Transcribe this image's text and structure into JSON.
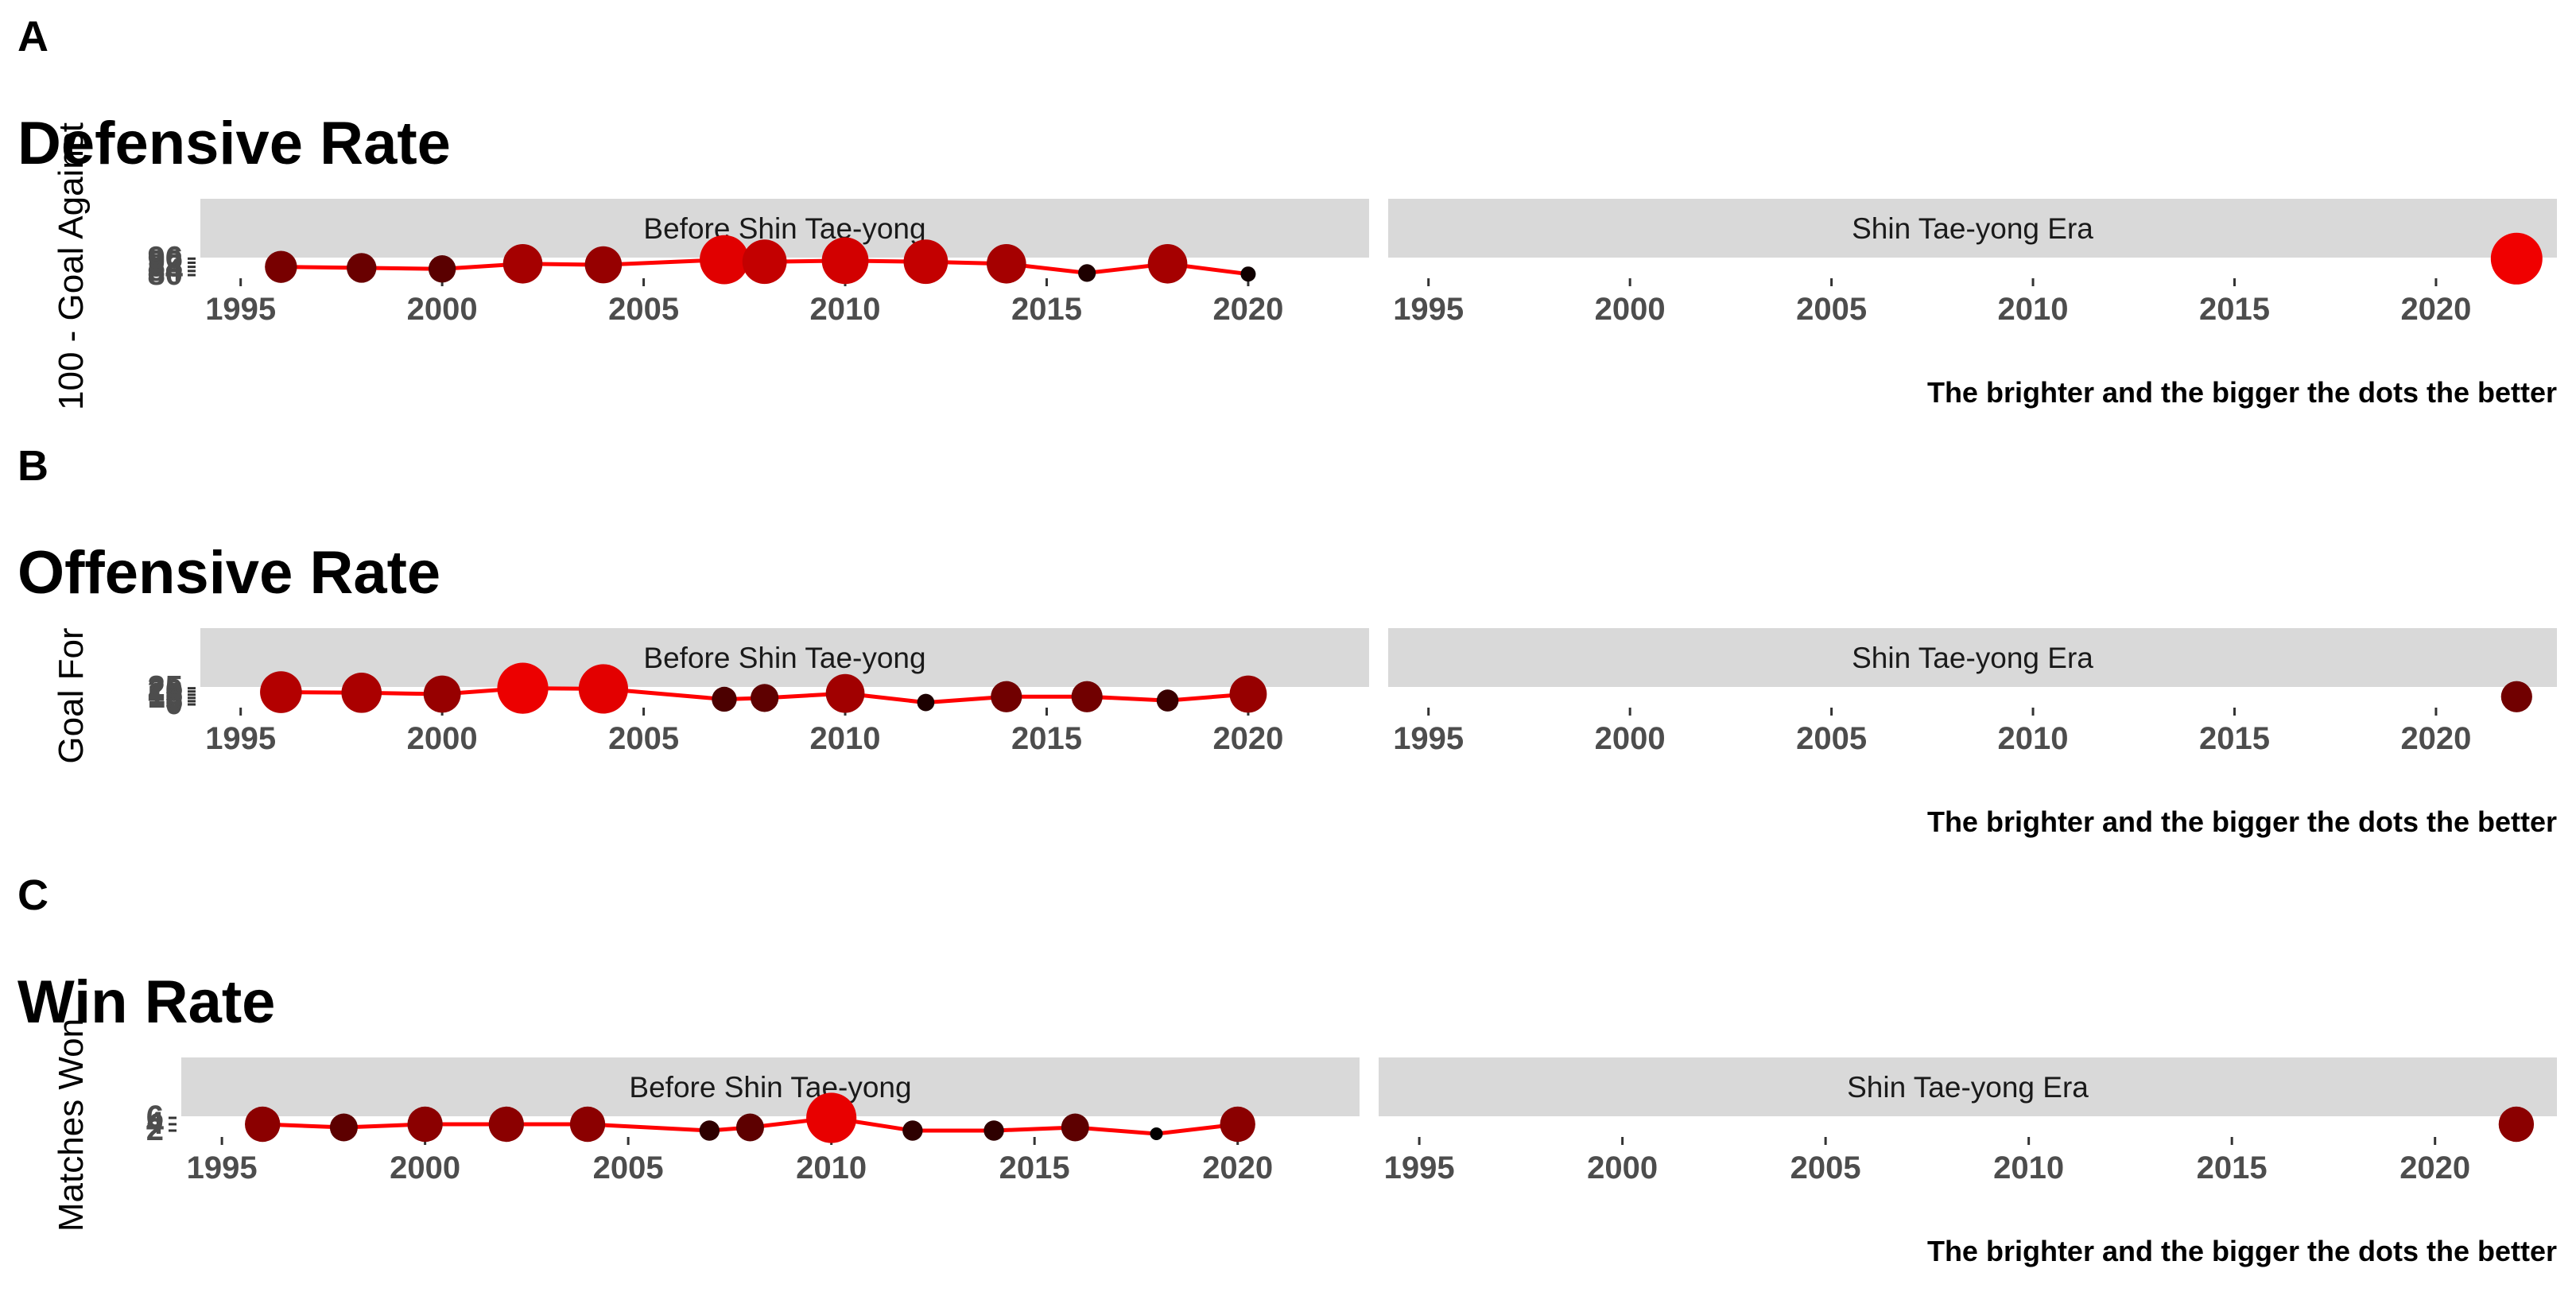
{
  "chart_data": [
    {
      "type": "line",
      "panel_label": "A",
      "title": "Defensive Rate",
      "ylabel": "100 - Goal Against",
      "caption": "The brighter and the bigger the dots the better",
      "facets": [
        "Before Shin Tae-yong",
        "Shin Tae-yong Era"
      ],
      "xlim": [
        1994,
        2023
      ],
      "xticks": [
        1995,
        2000,
        2005,
        2010,
        2015,
        2020
      ],
      "ylim": [
        80,
        97
      ],
      "yticks": [
        "80",
        "84",
        "88",
        "92",
        "96"
      ],
      "line_color": "#ff0000",
      "dot_colors": [
        "#000000",
        "#ff0000"
      ],
      "series": [
        {
          "facet": "Before Shin Tae-yong",
          "x": [
            1996,
            1998,
            2000,
            2002,
            2004,
            2007,
            2008,
            2010,
            2012,
            2014,
            2016,
            2018,
            2020
          ],
          "y": [
            88,
            87,
            86,
            91,
            90,
            95,
            93,
            94,
            93,
            91,
            82,
            91,
            81
          ]
        },
        {
          "facet": "Shin Tae-yong Era",
          "x": [
            2022
          ],
          "y": [
            96
          ]
        }
      ]
    },
    {
      "type": "line",
      "panel_label": "B",
      "title": "Offensive Rate",
      "ylabel": "Goal For",
      "caption": "The brighter and the bigger the dots the better",
      "facets": [
        "Before Shin Tae-yong",
        "Shin Tae-yong Era"
      ],
      "xlim": [
        1994,
        2023
      ],
      "xticks": [
        1995,
        2000,
        2005,
        2010,
        2015,
        2020
      ],
      "ylim": [
        0,
        27
      ],
      "yticks": [
        "0",
        "5",
        "10",
        "15",
        "20",
        "25"
      ],
      "line_color": "#ff0000",
      "dot_colors": [
        "#000000",
        "#ff0000"
      ],
      "series": [
        {
          "facet": "Before Shin Tae-yong",
          "x": [
            1996,
            1998,
            2000,
            2002,
            2004,
            2007,
            2008,
            2010,
            2012,
            2014,
            2016,
            2018,
            2020
          ],
          "y": [
            19,
            18,
            16,
            25,
            24,
            8,
            10,
            17,
            3,
            12,
            12,
            6,
            16
          ]
        },
        {
          "facet": "Shin Tae-yong Era",
          "x": [
            2022
          ],
          "y": [
            12
          ]
        }
      ]
    },
    {
      "type": "line",
      "panel_label": "C",
      "title": "Win Rate",
      "ylabel": "Matches Won",
      "caption": "The brighter and the bigger the dots the better",
      "facets": [
        "Before Shin Tae-yong",
        "Shin Tae-yong Era"
      ],
      "xlim": [
        1994,
        2023
      ],
      "xticks": [
        1995,
        2000,
        2005,
        2010,
        2015,
        2020
      ],
      "ylim": [
        1,
        6.5
      ],
      "yticks": [
        "2",
        "4",
        "6"
      ],
      "line_color": "#ff0000",
      "dot_colors": [
        "#000000",
        "#ff0000"
      ],
      "series": [
        {
          "facet": "Before Shin Tae-yong",
          "x": [
            1996,
            1998,
            2000,
            2002,
            2004,
            2007,
            2008,
            2010,
            2012,
            2014,
            2016,
            2018,
            2020
          ],
          "y": [
            4,
            3,
            4,
            4,
            4,
            2,
            3,
            6,
            2,
            2,
            3,
            1,
            4
          ]
        },
        {
          "facet": "Shin Tae-yong Era",
          "x": [
            2022
          ],
          "y": [
            4
          ]
        }
      ]
    }
  ]
}
